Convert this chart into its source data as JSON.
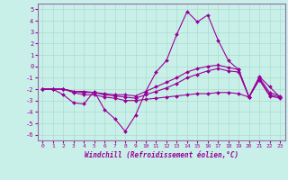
{
  "xlabel": "Windchill (Refroidissement éolien,°C)",
  "background_color": "#c8f0e8",
  "line_color": "#990099",
  "grid_color": "#aaddcc",
  "spine_color": "#9966aa",
  "xlim": [
    -0.5,
    23.5
  ],
  "ylim": [
    -6.5,
    5.5
  ],
  "yticks": [
    -6,
    -5,
    -4,
    -3,
    -2,
    -1,
    0,
    1,
    2,
    3,
    4,
    5
  ],
  "xticks": [
    0,
    1,
    2,
    3,
    4,
    5,
    6,
    7,
    8,
    9,
    10,
    11,
    12,
    13,
    14,
    15,
    16,
    17,
    18,
    19,
    20,
    21,
    22,
    23
  ],
  "series": [
    {
      "x": [
        0,
        1,
        2,
        3,
        4,
        5,
        6,
        7,
        8,
        9,
        10,
        11,
        12,
        13,
        14,
        15,
        16,
        17,
        18,
        19,
        20,
        21,
        22,
        23
      ],
      "y": [
        -2.0,
        -2.0,
        -2.5,
        -3.2,
        -3.3,
        -2.2,
        -3.8,
        -4.6,
        -5.7,
        -4.3,
        -2.2,
        -0.5,
        0.5,
        2.8,
        4.8,
        3.9,
        4.5,
        2.3,
        0.5,
        -0.3,
        -2.7,
        -0.9,
        -1.8,
        -2.7
      ]
    },
    {
      "x": [
        0,
        1,
        2,
        3,
        4,
        5,
        6,
        7,
        8,
        9,
        10,
        11,
        12,
        13,
        14,
        15,
        16,
        17,
        18,
        19,
        20,
        21,
        22,
        23
      ],
      "y": [
        -2.0,
        -2.0,
        -2.0,
        -2.2,
        -2.2,
        -2.3,
        -2.4,
        -2.5,
        -2.5,
        -2.6,
        -2.2,
        -1.8,
        -1.4,
        -1.0,
        -0.5,
        -0.2,
        0.0,
        0.1,
        -0.1,
        -0.3,
        -2.7,
        -1.0,
        -2.3,
        -2.6
      ]
    },
    {
      "x": [
        0,
        1,
        2,
        3,
        4,
        5,
        6,
        7,
        8,
        9,
        10,
        11,
        12,
        13,
        14,
        15,
        16,
        17,
        18,
        19,
        20,
        21,
        22,
        23
      ],
      "y": [
        -2.0,
        -2.0,
        -2.0,
        -2.2,
        -2.3,
        -2.3,
        -2.5,
        -2.6,
        -2.7,
        -2.8,
        -2.5,
        -2.2,
        -1.9,
        -1.5,
        -1.0,
        -0.7,
        -0.4,
        -0.2,
        -0.4,
        -0.5,
        -2.7,
        -1.1,
        -2.5,
        -2.7
      ]
    },
    {
      "x": [
        0,
        1,
        2,
        3,
        4,
        5,
        6,
        7,
        8,
        9,
        10,
        11,
        12,
        13,
        14,
        15,
        16,
        17,
        18,
        19,
        20,
        21,
        22,
        23
      ],
      "y": [
        -2.0,
        -2.0,
        -2.0,
        -2.3,
        -2.5,
        -2.5,
        -2.7,
        -2.8,
        -3.0,
        -3.0,
        -2.9,
        -2.8,
        -2.7,
        -2.6,
        -2.5,
        -2.4,
        -2.4,
        -2.3,
        -2.3,
        -2.4,
        -2.7,
        -1.2,
        -2.6,
        -2.8
      ]
    }
  ]
}
